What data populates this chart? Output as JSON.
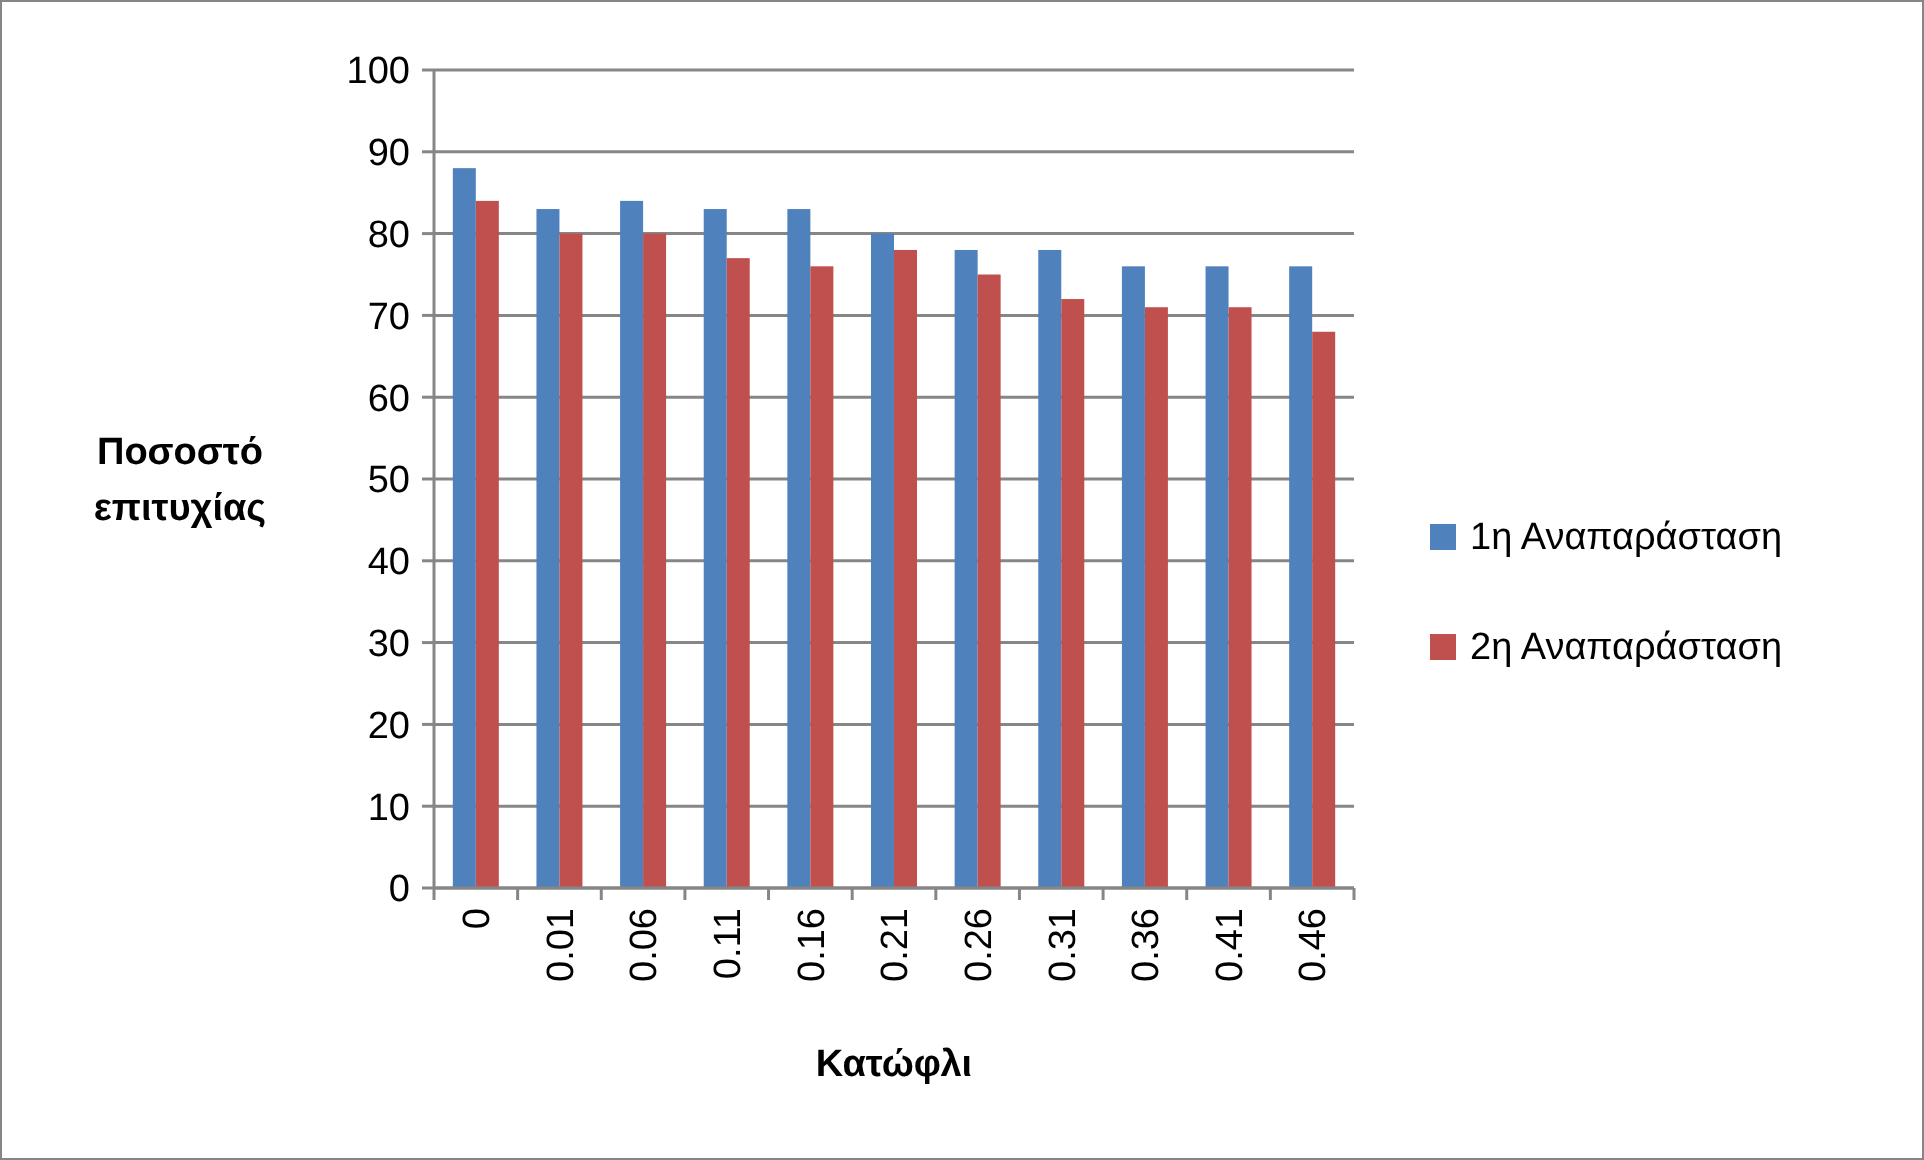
{
  "chart_data": {
    "type": "bar",
    "xlabel": "Κατώφλι",
    "ylabel": "Ποσοστό επιτυχίας",
    "categories": [
      "0",
      "0.01",
      "0.06",
      "0.11",
      "0.16",
      "0.21",
      "0.26",
      "0.31",
      "0.36",
      "0.41",
      "0.46"
    ],
    "series": [
      {
        "name": "1η Αναπαράσταση",
        "color": "#4f81bd",
        "values": [
          88,
          83,
          84,
          83,
          83,
          80,
          78,
          78,
          76,
          76,
          76
        ]
      },
      {
        "name": "2η Αναπαράσταση",
        "color": "#c0504d",
        "values": [
          84,
          80,
          80,
          77,
          76,
          78,
          75,
          72,
          71,
          71,
          68
        ]
      }
    ],
    "ylim": [
      0,
      100
    ],
    "yticks": [
      0,
      10,
      20,
      30,
      40,
      50,
      60,
      70,
      80,
      90,
      100
    ],
    "grid": "y",
    "legend": "right"
  }
}
